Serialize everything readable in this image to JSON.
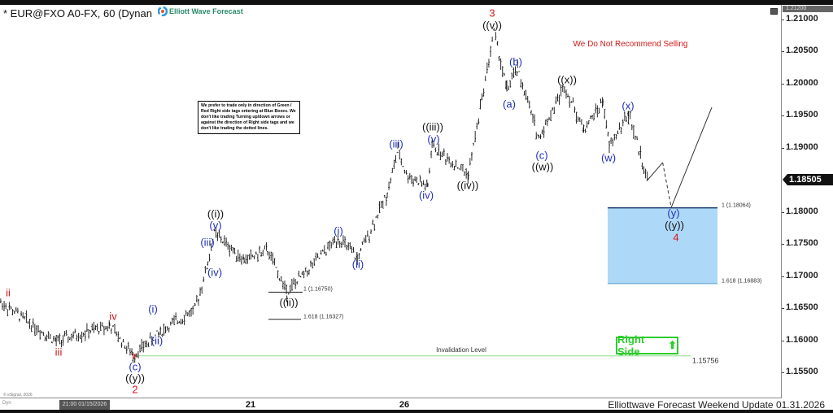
{
  "header": {
    "title": "* EUR@FXO A0-FX, 60 (Dynan",
    "logo_text": "Elliott Wave Forecast",
    "top_price": "1.21200",
    "last_price": "1.18505"
  },
  "note": "We prefer to trade only in direction of Green / Red Right side tags entering at Blue Boxes. We don't like trading Turning up/down arrows or against the direction of Right side tags and we don't like trading the dotted lines.",
  "warning": "We Do Not Recommend Selling",
  "right_side": {
    "label": "Right Side",
    "icon": "arrow-up-icon",
    "color": "#2ecc2e"
  },
  "invalidation": {
    "label": "Invalidation Level",
    "value": "1.15756",
    "price": 1.15756
  },
  "fib_lines": [
    {
      "label": "1 (1.16750)",
      "price": 1.1675
    },
    {
      "label": "1.618 (1.16327)",
      "price": 1.16327
    }
  ],
  "blue_box": {
    "top_label": "1 (1.18064)",
    "bottom_label": "1.618 (1.16883)",
    "top": 1.18064,
    "bottom": 1.16883,
    "color": "#aed8f8"
  },
  "footer": {
    "text": "Elliottwave Forecast Weekend  Update 01.31.2026",
    "copyright": "© eSignal, 2026",
    "dyn": "Dyn",
    "crosshair_date": "21:00 01/15/2026"
  },
  "wave_labels": [
    {
      "text": "ii",
      "color": "red"
    },
    {
      "text": "iii",
      "color": "red"
    },
    {
      "text": "iv",
      "color": "red"
    },
    {
      "text": "v",
      "color": "red"
    },
    {
      "text": "(c)",
      "color": "blue"
    },
    {
      "text": "((y))",
      "color": "blk"
    },
    {
      "text": "2",
      "color": "red"
    },
    {
      "text": "(i)",
      "color": "blue"
    },
    {
      "text": "(ii)",
      "color": "blue"
    },
    {
      "text": "((i))",
      "color": "blk"
    },
    {
      "text": "(v)",
      "color": "blue"
    },
    {
      "text": "(iii)",
      "color": "blue"
    },
    {
      "text": "(iv)",
      "color": "blue"
    },
    {
      "text": "((ii))",
      "color": "blk"
    },
    {
      "text": "(i)",
      "color": "blue"
    },
    {
      "text": "(ii)",
      "color": "blue"
    },
    {
      "text": "(iii)",
      "color": "blue"
    },
    {
      "text": "((iii))",
      "color": "blk"
    },
    {
      "text": "(v)",
      "color": "blue"
    },
    {
      "text": "(iv)",
      "color": "blue"
    },
    {
      "text": "((iv))",
      "color": "blk"
    },
    {
      "text": "3",
      "color": "red"
    },
    {
      "text": "((v))",
      "color": "blk"
    },
    {
      "text": "(a)",
      "color": "blue"
    },
    {
      "text": "(b)",
      "color": "blue"
    },
    {
      "text": "(c)",
      "color": "blue"
    },
    {
      "text": "((w))",
      "color": "blk"
    },
    {
      "text": "((x))",
      "color": "blk"
    },
    {
      "text": "(w)",
      "color": "blue"
    },
    {
      "text": "(x)",
      "color": "blue"
    },
    {
      "text": "(y)",
      "color": "blue"
    },
    {
      "text": "((y))",
      "color": "blk"
    },
    {
      "text": "4",
      "color": "red"
    }
  ],
  "chart_data": {
    "type": "ohlc",
    "interval": "60",
    "y_ticks": [
      "1.21000",
      "1.20500",
      "1.20000",
      "1.19500",
      "1.19000",
      "1.18000",
      "1.17500",
      "1.17000",
      "1.16500",
      "1.16000",
      "1.15500"
    ],
    "ylim": [
      1.1525,
      1.213
    ],
    "x_ticks": [
      "21",
      "26"
    ],
    "pivots": [
      {
        "time": "01/14 03:00",
        "price": 1.1659
      },
      {
        "time": "01/15 05:00",
        "price": 1.1598
      },
      {
        "time": "01/16 06:00",
        "price": 1.1623
      },
      {
        "time": "01/16 17:00",
        "price": 1.1576
      },
      {
        "time": "01/19 05:00",
        "price": 1.1611
      },
      {
        "time": "01/19 22:00",
        "price": 1.1649
      },
      {
        "time": "01/20 04:00",
        "price": 1.1719
      },
      {
        "time": "01/20 07:00",
        "price": 1.1767
      },
      {
        "time": "01/20 21:00",
        "price": 1.1725
      },
      {
        "time": "01/21 08:00",
        "price": 1.174
      },
      {
        "time": "01/21 17:00",
        "price": 1.1675
      },
      {
        "time": "01/22 17:00",
        "price": 1.176
      },
      {
        "time": "01/23 02:00",
        "price": 1.1727
      },
      {
        "time": "01/23 16:00",
        "price": 1.1829
      },
      {
        "time": "01/23 21:00",
        "price": 1.1896
      },
      {
        "time": "01/26 01:00",
        "price": 1.1858
      },
      {
        "time": "01/26 11:00",
        "price": 1.1839
      },
      {
        "time": "01/26 13:00",
        "price": 1.1902
      },
      {
        "time": "01/27 06:00",
        "price": 1.1858
      },
      {
        "time": "01/27 18:00",
        "price": 1.2082
      },
      {
        "time": "01/28 00:00",
        "price": 1.1991
      },
      {
        "time": "01/28 05:00",
        "price": 1.2023
      },
      {
        "time": "01/28 15:00",
        "price": 1.1915
      },
      {
        "time": "01/29 03:00",
        "price": 1.1997
      },
      {
        "time": "01/29 12:00",
        "price": 1.1928
      },
      {
        "time": "01/29 21:00",
        "price": 1.1972
      },
      {
        "time": "01/30 00:00",
        "price": 1.1902
      },
      {
        "time": "01/30 09:00",
        "price": 1.1953
      },
      {
        "time": "01/30 18:00",
        "price": 1.185
      }
    ],
    "projection": [
      {
        "time": "01/30 18:00",
        "price": 1.185,
        "style": "solid"
      },
      {
        "time": "01/31 01:00",
        "price": 1.1877,
        "style": "dashed"
      },
      {
        "time": "01/31 05:00",
        "price": 1.1807,
        "style": "solid"
      },
      {
        "time": "02/01 00:00",
        "price": 1.1963
      }
    ]
  }
}
